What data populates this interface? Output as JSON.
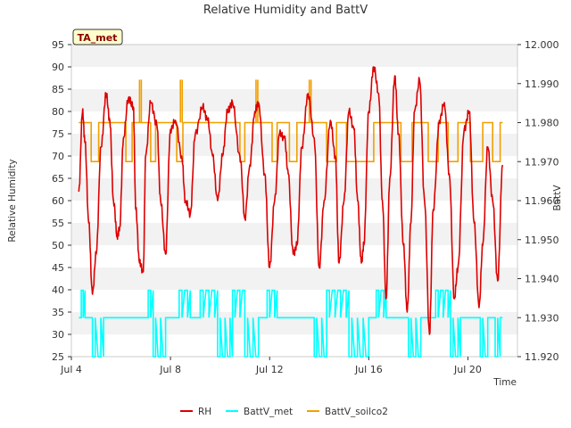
{
  "chart_data": {
    "type": "line",
    "title": "Relative Humidity and BattV",
    "xlabel": "Time",
    "ylabel": "Relative Humidity",
    "y2label": "BattV",
    "site_badge": "TA_met",
    "x_tick_labels": [
      "Jul 4",
      "Jul 8",
      "Jul 12",
      "Jul 16",
      "Jul 20"
    ],
    "x_ticks_day": [
      4,
      8,
      12,
      16,
      20
    ],
    "xlim_day": [
      4,
      22
    ],
    "ylim": [
      25,
      95
    ],
    "y_ticks": [
      "25",
      "30",
      "35",
      "40",
      "45",
      "50",
      "55",
      "60",
      "65",
      "70",
      "75",
      "80",
      "85",
      "90",
      "95"
    ],
    "y2lim": [
      11.92,
      12.0
    ],
    "y2_ticks": [
      "11.920",
      "11.930",
      "11.940",
      "11.950",
      "11.960",
      "11.970",
      "11.980",
      "11.990",
      "12.000"
    ],
    "grid": "horizontal bands",
    "legend_position": "bottom",
    "series": [
      {
        "name": "RH",
        "axis": "left",
        "color": "#dd0000",
        "x_day": [
          4.3,
          4.45,
          4.55,
          4.7,
          4.85,
          5.0,
          5.2,
          5.4,
          5.55,
          5.7,
          5.85,
          5.95,
          6.1,
          6.3,
          6.5,
          6.6,
          6.75,
          6.9,
          7.0,
          7.2,
          7.45,
          7.6,
          7.8,
          8.0,
          8.2,
          8.45,
          8.6,
          8.8,
          9.0,
          9.3,
          9.5,
          9.7,
          9.9,
          10.1,
          10.3,
          10.5,
          10.8,
          11.0,
          11.2,
          11.4,
          11.55,
          11.8,
          12.0,
          12.2,
          12.4,
          12.6,
          12.75,
          12.95,
          13.1,
          13.3,
          13.55,
          13.8,
          14.0,
          14.2,
          14.45,
          14.65,
          14.8,
          15.0,
          15.2,
          15.4,
          15.55,
          15.7,
          15.8,
          16.0,
          16.2,
          16.4,
          16.55,
          16.7,
          16.85,
          17.05,
          17.2,
          17.4,
          17.55,
          17.7,
          17.85,
          18.05,
          18.25,
          18.45,
          18.6,
          18.85,
          19.05,
          19.25,
          19.45,
          19.6,
          19.85,
          20.05,
          20.25,
          20.45,
          20.6,
          20.8,
          21.0,
          21.2,
          21.4
        ],
        "values": [
          62,
          80,
          73,
          55,
          39,
          48,
          72,
          84,
          78,
          60,
          52,
          54,
          74,
          83,
          81,
          58,
          46,
          44,
          70,
          82,
          77,
          60,
          48,
          76,
          78,
          70,
          60,
          57,
          75,
          81,
          78,
          70,
          60,
          70,
          80,
          82,
          70,
          56,
          68,
          80,
          82,
          66,
          45,
          60,
          75,
          74,
          66,
          48,
          50,
          72,
          84,
          74,
          45,
          60,
          78,
          70,
          46,
          60,
          80,
          76,
          60,
          46,
          50,
          80,
          90,
          84,
          60,
          38,
          65,
          88,
          75,
          50,
          35,
          55,
          80,
          87,
          60,
          30,
          58,
          78,
          82,
          66,
          38,
          45,
          76,
          80,
          55,
          36,
          50,
          72,
          60,
          42,
          68
        ]
      },
      {
        "name": "BattV_met",
        "axis": "right",
        "color": "#00ffff",
        "baseline": 11.93,
        "high": 11.937,
        "low_clip": 25,
        "segments": [
          {
            "start": 4.3,
            "end": 4.4,
            "level": "base"
          },
          {
            "start": 4.4,
            "end": 4.55,
            "level": "high"
          },
          {
            "start": 4.55,
            "end": 4.85,
            "level": "base"
          },
          {
            "start": 4.85,
            "end": 5.3,
            "level": "low"
          },
          {
            "start": 5.3,
            "end": 7.1,
            "level": "base"
          },
          {
            "start": 7.1,
            "end": 7.3,
            "level": "high"
          },
          {
            "start": 7.3,
            "end": 7.8,
            "level": "low"
          },
          {
            "start": 7.8,
            "end": 8.35,
            "level": "base"
          },
          {
            "start": 8.35,
            "end": 8.8,
            "level": "high"
          },
          {
            "start": 8.8,
            "end": 9.2,
            "level": "base"
          },
          {
            "start": 9.2,
            "end": 9.9,
            "level": "high"
          },
          {
            "start": 9.9,
            "end": 10.5,
            "level": "low"
          },
          {
            "start": 10.5,
            "end": 11.0,
            "level": "high"
          },
          {
            "start": 11.0,
            "end": 11.55,
            "level": "low"
          },
          {
            "start": 11.55,
            "end": 11.9,
            "level": "base"
          },
          {
            "start": 11.9,
            "end": 12.3,
            "level": "high"
          },
          {
            "start": 12.3,
            "end": 13.8,
            "level": "base"
          },
          {
            "start": 13.8,
            "end": 14.3,
            "level": "low"
          },
          {
            "start": 14.3,
            "end": 15.2,
            "level": "high"
          },
          {
            "start": 15.2,
            "end": 16.0,
            "level": "low"
          },
          {
            "start": 16.0,
            "end": 16.3,
            "level": "base"
          },
          {
            "start": 16.3,
            "end": 16.7,
            "level": "high"
          },
          {
            "start": 16.7,
            "end": 17.6,
            "level": "base"
          },
          {
            "start": 17.6,
            "end": 18.1,
            "level": "low"
          },
          {
            "start": 18.1,
            "end": 18.7,
            "level": "base"
          },
          {
            "start": 18.7,
            "end": 19.3,
            "level": "high"
          },
          {
            "start": 19.3,
            "end": 19.7,
            "level": "low"
          },
          {
            "start": 19.7,
            "end": 20.5,
            "level": "base"
          },
          {
            "start": 20.5,
            "end": 20.8,
            "level": "low"
          },
          {
            "start": 20.8,
            "end": 21.1,
            "level": "base"
          },
          {
            "start": 21.1,
            "end": 21.3,
            "level": "low"
          },
          {
            "start": 21.3,
            "end": 21.4,
            "level": "base"
          }
        ]
      },
      {
        "name": "BattV_soilco2",
        "axis": "right",
        "color": "#f0a000",
        "base": 11.97,
        "high": 11.98,
        "spikes": [
          6.75,
          8.4,
          11.45,
          13.6
        ],
        "spike_value": 11.991,
        "segments": [
          {
            "start": 4.3,
            "end": 4.8,
            "level": "high"
          },
          {
            "start": 4.8,
            "end": 5.1,
            "level": "base"
          },
          {
            "start": 5.1,
            "end": 6.2,
            "level": "high"
          },
          {
            "start": 6.2,
            "end": 6.45,
            "level": "base"
          },
          {
            "start": 6.45,
            "end": 7.2,
            "level": "high"
          },
          {
            "start": 7.2,
            "end": 7.4,
            "level": "base"
          },
          {
            "start": 7.4,
            "end": 8.25,
            "level": "high"
          },
          {
            "start": 8.25,
            "end": 8.5,
            "level": "base"
          },
          {
            "start": 8.5,
            "end": 10.8,
            "level": "high"
          },
          {
            "start": 10.8,
            "end": 11.0,
            "level": "base"
          },
          {
            "start": 11.0,
            "end": 12.1,
            "level": "high"
          },
          {
            "start": 12.1,
            "end": 12.3,
            "level": "base"
          },
          {
            "start": 12.3,
            "end": 12.8,
            "level": "high"
          },
          {
            "start": 12.8,
            "end": 13.1,
            "level": "base"
          },
          {
            "start": 13.1,
            "end": 14.3,
            "level": "high"
          },
          {
            "start": 14.3,
            "end": 14.7,
            "level": "base"
          },
          {
            "start": 14.7,
            "end": 15.1,
            "level": "high"
          },
          {
            "start": 15.1,
            "end": 16.2,
            "level": "base"
          },
          {
            "start": 16.2,
            "end": 17.3,
            "level": "high"
          },
          {
            "start": 17.3,
            "end": 17.75,
            "level": "base"
          },
          {
            "start": 17.75,
            "end": 18.4,
            "level": "high"
          },
          {
            "start": 18.4,
            "end": 18.8,
            "level": "base"
          },
          {
            "start": 18.8,
            "end": 19.2,
            "level": "high"
          },
          {
            "start": 19.2,
            "end": 19.6,
            "level": "base"
          },
          {
            "start": 19.6,
            "end": 20.1,
            "level": "high"
          },
          {
            "start": 20.1,
            "end": 20.6,
            "level": "base"
          },
          {
            "start": 20.6,
            "end": 21.0,
            "level": "high"
          },
          {
            "start": 21.0,
            "end": 21.3,
            "level": "base"
          },
          {
            "start": 21.3,
            "end": 21.4,
            "level": "high"
          }
        ]
      }
    ]
  }
}
